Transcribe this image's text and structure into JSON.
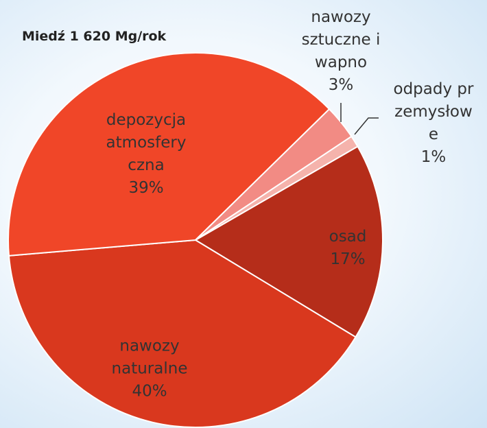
{
  "chart_data": {
    "type": "pie",
    "title": "Miedź 1 620 Mg/rok",
    "categories": [
      "osad",
      "nawozy naturalne",
      "depozycja atmosferyczna",
      "nawozy sztuczne i wapno",
      "odpady przemysłowe"
    ],
    "values": [
      17,
      40,
      39,
      3,
      1
    ],
    "value_labels": [
      "17%",
      "40%",
      "39%",
      "3%",
      "1%"
    ],
    "colors": [
      "#b52d1a",
      "#d9381e",
      "#f04628",
      "#f28b84",
      "#f5b3ac"
    ]
  }
}
